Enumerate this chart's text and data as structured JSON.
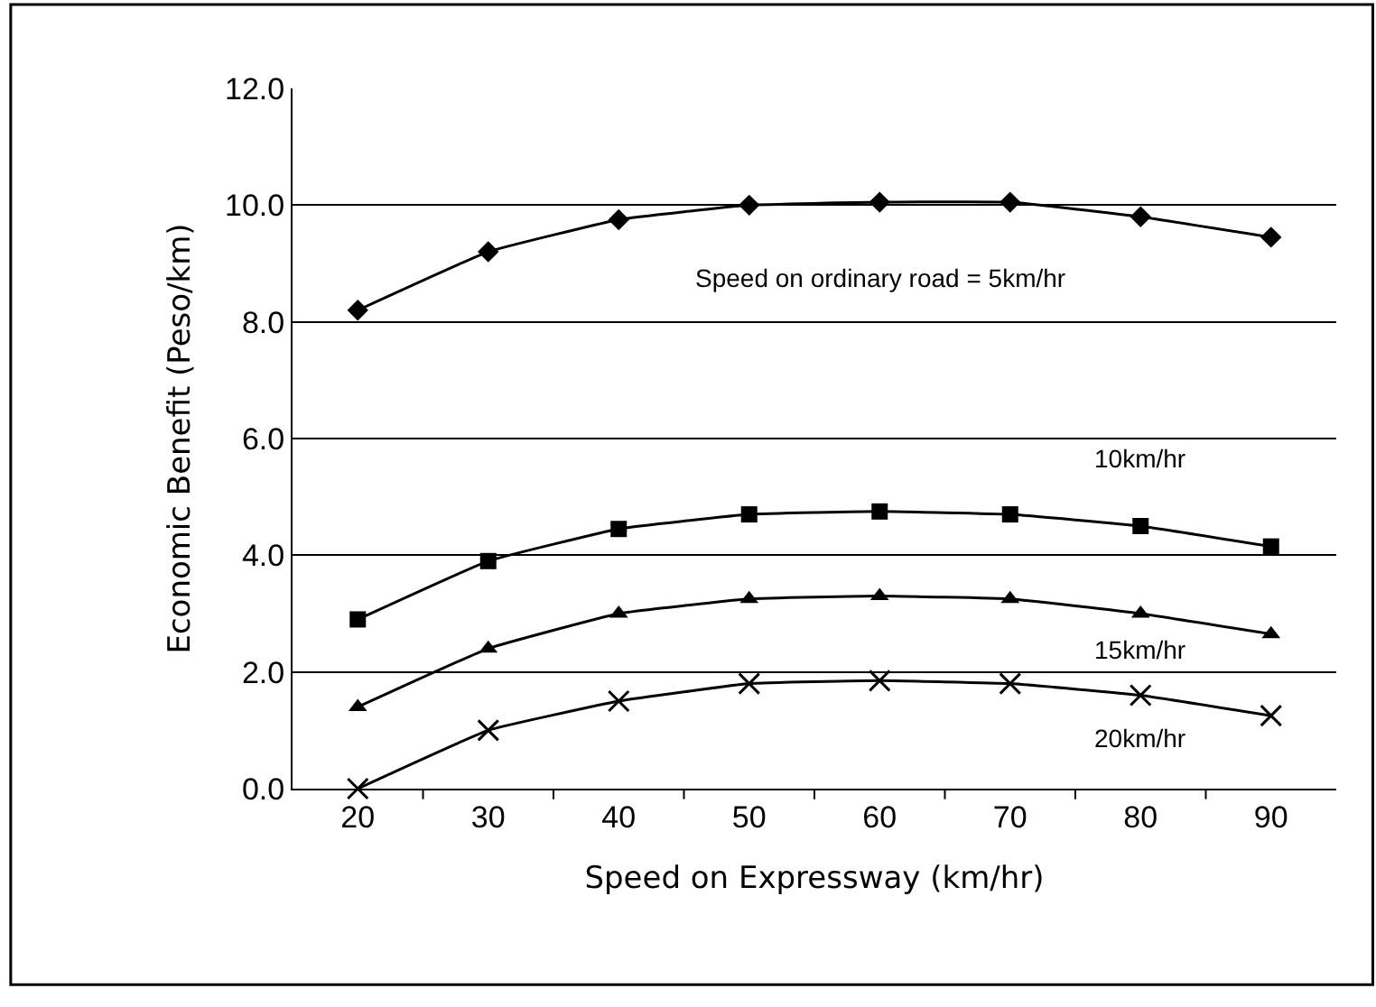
{
  "chart_data": {
    "type": "line",
    "xlabel": "Speed on Expressway (km/hr)",
    "ylabel": "Economic Benefit (Peso/km)",
    "categories": [
      "20",
      "30",
      "40",
      "50",
      "60",
      "70",
      "80",
      "90"
    ],
    "series": [
      {
        "name": "Speed on ordinary road = 5km/hr",
        "color": "#000000",
        "marker": "diamond",
        "values": [
          8.2,
          9.2,
          9.75,
          10.0,
          10.05,
          10.05,
          9.8,
          9.45
        ]
      },
      {
        "name": "10km/hr",
        "color": "#000000",
        "marker": "square",
        "values": [
          2.9,
          3.9,
          4.45,
          4.7,
          4.75,
          4.7,
          4.5,
          4.15
        ]
      },
      {
        "name": "15km/hr",
        "color": "#000000",
        "marker": "triangle",
        "values": [
          1.4,
          2.4,
          3.0,
          3.25,
          3.3,
          3.25,
          3.0,
          2.65
        ]
      },
      {
        "name": "20km/hr",
        "color": "#000000",
        "marker": "cross",
        "values": [
          0.0,
          1.0,
          1.5,
          1.8,
          1.85,
          1.8,
          1.6,
          1.25
        ]
      }
    ],
    "ylim": [
      0,
      12
    ],
    "yticks": [
      {
        "value": 0,
        "label": "0.0"
      },
      {
        "value": 2,
        "label": "2.0"
      },
      {
        "value": 4,
        "label": "4.0"
      },
      {
        "value": 6,
        "label": "6.0"
      },
      {
        "value": 8,
        "label": "8.0"
      },
      {
        "value": 10,
        "label": "10.0"
      },
      {
        "value": 12,
        "label": "12.0"
      }
    ],
    "grid": "y",
    "line_style": "solid"
  }
}
